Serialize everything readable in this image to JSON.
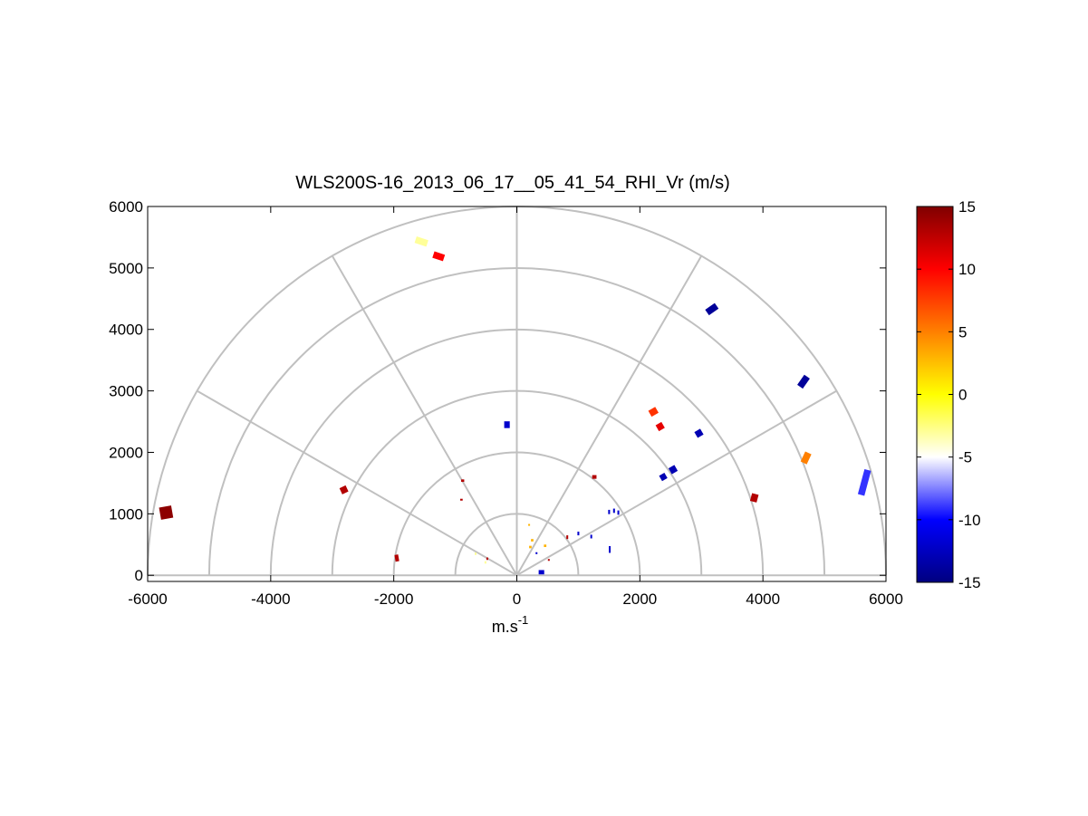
{
  "chart_data": {
    "type": "scatter",
    "title": "WLS200S-16_2013_06_17__05_41_54_RHI_Vr (m/s)",
    "xlabel_base": "m.s",
    "xlabel_exp": "-1",
    "ylabel": "",
    "xlim": [
      -6000,
      6000
    ],
    "ylim": [
      -100,
      6000
    ],
    "xticks": [
      -6000,
      -4000,
      -2000,
      0,
      2000,
      4000,
      6000
    ],
    "yticks": [
      0,
      1000,
      2000,
      3000,
      4000,
      5000,
      6000
    ],
    "xtick_labels": [
      "-6000",
      "-4000",
      "-2000",
      "0",
      "2000",
      "4000",
      "6000"
    ],
    "ytick_labels": [
      "0",
      "1000",
      "2000",
      "3000",
      "4000",
      "5000",
      "6000"
    ],
    "grid": true,
    "polar_grid": {
      "ring_radii": [
        1000,
        2000,
        3000,
        4000,
        5000,
        6000
      ],
      "spoke_angles_deg": [
        0,
        30,
        60,
        90,
        120,
        150,
        180
      ]
    },
    "colorbar": {
      "range": [
        -15,
        15
      ],
      "ticks": [
        15,
        10,
        5,
        0,
        -5,
        -10,
        -15
      ],
      "tick_labels": [
        "15",
        "10",
        "5",
        "0",
        "-5",
        "-10",
        "-15"
      ],
      "colors": [
        "#000080",
        "#0000ff",
        "#ffffff",
        "#ffff00",
        "#ff8000",
        "#ff0000",
        "#800000"
      ]
    },
    "points": [
      {
        "x": -5700,
        "y": 1020,
        "v": 14.5,
        "w": 200,
        "h": 200,
        "angle": 10
      },
      {
        "x": -2810,
        "y": 1390,
        "v": 13,
        "w": 110,
        "h": 110,
        "angle": 25
      },
      {
        "x": -1950,
        "y": 280,
        "v": 13,
        "w": 60,
        "h": 110,
        "angle": 10
      },
      {
        "x": -1550,
        "y": 5430,
        "v": -3,
        "w": 200,
        "h": 110,
        "angle": -18
      },
      {
        "x": -1270,
        "y": 5190,
        "v": 10,
        "w": 180,
        "h": 110,
        "angle": -18
      },
      {
        "x": -160,
        "y": 2450,
        "v": -12,
        "w": 90,
        "h": 110,
        "angle": 0
      },
      {
        "x": -880,
        "y": 1540,
        "v": 13,
        "w": 50,
        "h": 40,
        "angle": 0
      },
      {
        "x": -900,
        "y": 1230,
        "v": 13,
        "w": 40,
        "h": 30,
        "angle": 0
      },
      {
        "x": -670,
        "y": 350,
        "v": -3,
        "w": 30,
        "h": 40,
        "angle": 0
      },
      {
        "x": -510,
        "y": 210,
        "v": -3,
        "w": 30,
        "h": 40,
        "angle": 0
      },
      {
        "x": -480,
        "y": 270,
        "v": 13,
        "w": 30,
        "h": 40,
        "angle": 0
      },
      {
        "x": 200,
        "y": 820,
        "v": 3,
        "w": 30,
        "h": 30,
        "angle": 0
      },
      {
        "x": 250,
        "y": 570,
        "v": 3,
        "w": 40,
        "h": 40,
        "angle": 0
      },
      {
        "x": 220,
        "y": 460,
        "v": 3,
        "w": 40,
        "h": 40,
        "angle": 0
      },
      {
        "x": 320,
        "y": 360,
        "v": -12,
        "w": 30,
        "h": 30,
        "angle": 0
      },
      {
        "x": 460,
        "y": 480,
        "v": 3,
        "w": 40,
        "h": 40,
        "angle": 0
      },
      {
        "x": 520,
        "y": 250,
        "v": 13,
        "w": 30,
        "h": 30,
        "angle": 0
      },
      {
        "x": 400,
        "y": 50,
        "v": -12,
        "w": 90,
        "h": 70,
        "angle": 0
      },
      {
        "x": 820,
        "y": 620,
        "v": 13,
        "w": 30,
        "h": 60,
        "angle": 0
      },
      {
        "x": 1000,
        "y": 680,
        "v": -12,
        "w": 30,
        "h": 60,
        "angle": 0
      },
      {
        "x": 1210,
        "y": 630,
        "v": -12,
        "w": 20,
        "h": 60,
        "angle": 0
      },
      {
        "x": 1510,
        "y": 420,
        "v": -12,
        "w": 20,
        "h": 110,
        "angle": 0
      },
      {
        "x": 1260,
        "y": 1600,
        "v": 13,
        "w": 70,
        "h": 60,
        "angle": 0
      },
      {
        "x": 1500,
        "y": 1030,
        "v": -12,
        "w": 30,
        "h": 70,
        "angle": 0
      },
      {
        "x": 1580,
        "y": 1050,
        "v": -12,
        "w": 30,
        "h": 70,
        "angle": 0
      },
      {
        "x": 1650,
        "y": 1020,
        "v": -12,
        "w": 30,
        "h": 70,
        "angle": 0
      },
      {
        "x": 2220,
        "y": 2660,
        "v": 8,
        "w": 130,
        "h": 110,
        "angle": 30
      },
      {
        "x": 2330,
        "y": 2420,
        "v": 11,
        "w": 110,
        "h": 110,
        "angle": 30
      },
      {
        "x": 2380,
        "y": 1600,
        "v": -13,
        "w": 100,
        "h": 100,
        "angle": 30
      },
      {
        "x": 2540,
        "y": 1720,
        "v": -13,
        "w": 110,
        "h": 110,
        "angle": 30
      },
      {
        "x": 2960,
        "y": 2310,
        "v": -13,
        "w": 110,
        "h": 110,
        "angle": 30
      },
      {
        "x": 3170,
        "y": 4330,
        "v": -14,
        "w": 190,
        "h": 110,
        "angle": 35
      },
      {
        "x": 3860,
        "y": 1260,
        "v": 13,
        "w": 110,
        "h": 130,
        "angle": -15
      },
      {
        "x": 4660,
        "y": 3150,
        "v": -14,
        "w": 110,
        "h": 200,
        "angle": -35
      },
      {
        "x": 4700,
        "y": 1910,
        "v": 5,
        "w": 110,
        "h": 180,
        "angle": -25
      },
      {
        "x": 5650,
        "y": 1510,
        "v": -9,
        "w": 110,
        "h": 420,
        "angle": -15
      }
    ]
  }
}
